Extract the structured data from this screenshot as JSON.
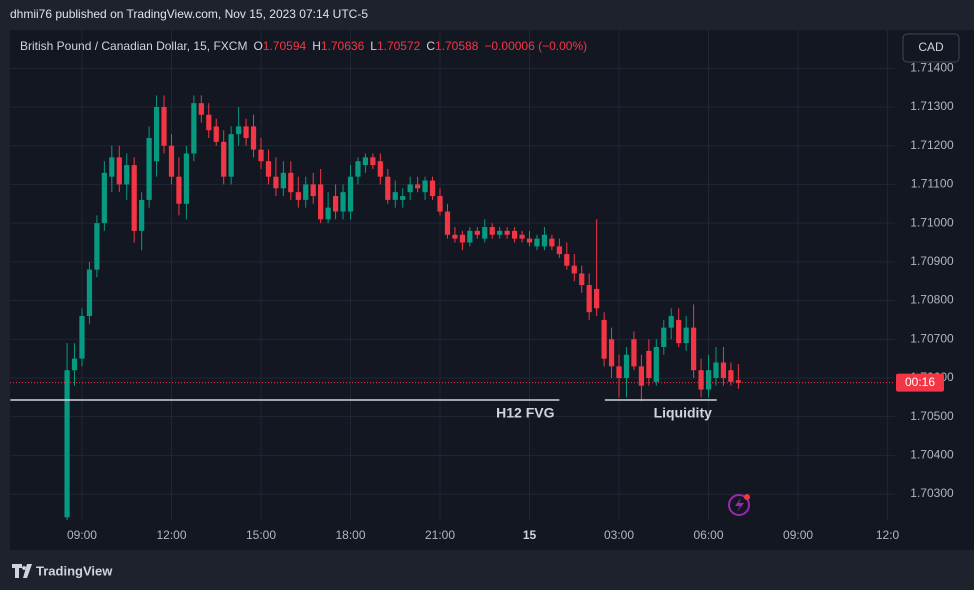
{
  "header": {
    "publisher": "dhmii76 published on TradingView.com, Nov 15, 2023 07:14 UTC-5"
  },
  "footer": {
    "brand": "TradingView"
  },
  "currency_button": "CAD",
  "chart_data": {
    "type": "candlestick",
    "title": "British Pound / Canadian Dollar, 15, FXCM",
    "ohlc_legend": {
      "open_label": "O",
      "open": "1.70594",
      "high_label": "H",
      "high": "1.70636",
      "low_label": "L",
      "low": "1.70572",
      "close_label": "C",
      "close": "1.70588",
      "change": "−0.00006 (−0.00%)"
    },
    "up_color": "#089981",
    "down_color": "#f23645",
    "open": [
      1.7024,
      1.7062,
      1.7065,
      1.7076,
      1.7088,
      1.71,
      1.7112,
      1.7117,
      1.711,
      1.7115,
      1.7098,
      1.7106,
      1.7116,
      1.713,
      1.712,
      1.7112,
      1.7105,
      1.7118,
      1.7131,
      1.7128,
      1.7125,
      1.7121,
      1.7112,
      1.7123,
      1.7125,
      1.7125,
      1.7119,
      1.7116,
      1.7112,
      1.7109,
      1.7113,
      1.7108,
      1.7106,
      1.711,
      1.711,
      1.7101,
      1.7107,
      1.7103,
      1.7103,
      1.7112,
      1.7115,
      1.7117,
      1.7116,
      1.7112,
      1.7106,
      1.7106,
      1.7108,
      1.711,
      1.7108,
      1.7111,
      1.7107,
      1.7103,
      1.7097,
      1.7097,
      1.7095,
      1.7098,
      1.7096,
      1.7099,
      1.7097,
      1.7098,
      1.7098,
      1.7097,
      1.7096,
      1.7094,
      1.7094,
      1.7096,
      1.7094,
      1.7092,
      1.7089,
      1.7087,
      1.7084,
      1.7083,
      1.7075,
      1.707,
      1.7063,
      1.706,
      1.707,
      1.7063,
      1.7067,
      1.7059,
      1.7068,
      1.7073,
      1.7075,
      1.7069,
      1.7073,
      1.7062,
      1.7057,
      1.706,
      1.7064,
      1.7062,
      1.70594
    ],
    "high": [
      1.7069,
      1.7069,
      1.7078,
      1.709,
      1.7102,
      1.7116,
      1.712,
      1.712,
      1.7118,
      1.7117,
      1.7108,
      1.7125,
      1.7133,
      1.7133,
      1.7123,
      1.7117,
      1.712,
      1.7133,
      1.7133,
      1.7131,
      1.7127,
      1.7124,
      1.7125,
      1.713,
      1.7127,
      1.7128,
      1.7122,
      1.7119,
      1.7117,
      1.7116,
      1.7116,
      1.7112,
      1.7112,
      1.7113,
      1.7114,
      1.7108,
      1.711,
      1.711,
      1.7115,
      1.7117,
      1.7118,
      1.7118,
      1.7118,
      1.7114,
      1.7111,
      1.7109,
      1.7112,
      1.7112,
      1.7112,
      1.7112,
      1.7109,
      1.7105,
      1.7099,
      1.7098,
      1.7099,
      1.7099,
      1.7101,
      1.71,
      1.7099,
      1.7099,
      1.7099,
      1.7098,
      1.7098,
      1.7097,
      1.7099,
      1.7097,
      1.7096,
      1.7095,
      1.7092,
      1.7089,
      1.7087,
      1.7101,
      1.7077,
      1.7073,
      1.7066,
      1.7068,
      1.7072,
      1.7066,
      1.707,
      1.707,
      1.7075,
      1.7078,
      1.7078,
      1.7076,
      1.7079,
      1.7065,
      1.7066,
      1.7068,
      1.7068,
      1.7064,
      1.70636
    ],
    "low": [
      1.70233,
      1.7058,
      1.7063,
      1.7074,
      1.7086,
      1.7098,
      1.7108,
      1.7108,
      1.7106,
      1.7095,
      1.7093,
      1.7104,
      1.7112,
      1.7118,
      1.711,
      1.7102,
      1.7101,
      1.7116,
      1.7126,
      1.7122,
      1.712,
      1.711,
      1.711,
      1.712,
      1.712,
      1.7117,
      1.7114,
      1.711,
      1.7107,
      1.7107,
      1.7106,
      1.7104,
      1.7104,
      1.7105,
      1.71,
      1.71,
      1.7101,
      1.7101,
      1.7101,
      1.711,
      1.7113,
      1.7114,
      1.711,
      1.7105,
      1.7104,
      1.7104,
      1.7106,
      1.7108,
      1.7106,
      1.7106,
      1.7102,
      1.7096,
      1.7095,
      1.7093,
      1.7094,
      1.7096,
      1.7095,
      1.7096,
      1.7096,
      1.7096,
      1.7095,
      1.7095,
      1.7094,
      1.7093,
      1.7093,
      1.7093,
      1.7091,
      1.7088,
      1.7085,
      1.7082,
      1.7075,
      1.7076,
      1.7063,
      1.706,
      1.7055,
      1.7055,
      1.7062,
      1.7054,
      1.7058,
      1.7058,
      1.7066,
      1.707,
      1.7068,
      1.7067,
      1.706,
      1.7055,
      1.7055,
      1.7058,
      1.7058,
      1.7058,
      1.70572
    ],
    "close": [
      1.7062,
      1.7065,
      1.7076,
      1.7088,
      1.71,
      1.7113,
      1.7117,
      1.711,
      1.7115,
      1.7098,
      1.7106,
      1.7122,
      1.713,
      1.712,
      1.7112,
      1.7105,
      1.7118,
      1.7131,
      1.7128,
      1.7124,
      1.7121,
      1.7112,
      1.7123,
      1.7125,
      1.7122,
      1.7119,
      1.7116,
      1.7112,
      1.7109,
      1.7113,
      1.7108,
      1.7106,
      1.711,
      1.7107,
      1.7101,
      1.7104,
      1.7103,
      1.7108,
      1.7112,
      1.7116,
      1.7117,
      1.7115,
      1.7112,
      1.7106,
      1.7108,
      1.7107,
      1.711,
      1.7109,
      1.7111,
      1.7107,
      1.7103,
      1.7097,
      1.7096,
      1.7095,
      1.7098,
      1.7097,
      1.7099,
      1.7097,
      1.7098,
      1.7097,
      1.7096,
      1.7096,
      1.7095,
      1.7096,
      1.7097,
      1.7094,
      1.7092,
      1.7089,
      1.7087,
      1.7084,
      1.7077,
      1.7078,
      1.7065,
      1.7063,
      1.706,
      1.7066,
      1.7063,
      1.7058,
      1.706,
      1.7068,
      1.7073,
      1.7076,
      1.7069,
      1.7073,
      1.7062,
      1.7057,
      1.7062,
      1.7064,
      1.706,
      1.7059,
      1.70588
    ],
    "xlim": [
      -7.65,
      111
    ],
    "xticks": [
      {
        "value": 2,
        "label": "09:00"
      },
      {
        "value": 14,
        "label": "12:00"
      },
      {
        "value": 26,
        "label": "15:00"
      },
      {
        "value": 38,
        "label": "18:00"
      },
      {
        "value": 50,
        "label": "21:00"
      },
      {
        "value": 62,
        "label": "15"
      },
      {
        "value": 74,
        "label": "03:00"
      },
      {
        "value": 86,
        "label": "06:00"
      },
      {
        "value": 98,
        "label": "09:00"
      },
      {
        "value": 110,
        "label": "12:0"
      }
    ],
    "ylim": [
      1.70233,
      1.71499
    ],
    "yticks": [
      {
        "value": 1.703,
        "label": "1.70300"
      },
      {
        "value": 1.704,
        "label": "1.70400"
      },
      {
        "value": 1.705,
        "label": "1.70500"
      },
      {
        "value": 1.706,
        "label": "1.70600"
      },
      {
        "value": 1.707,
        "label": "1.70700"
      },
      {
        "value": 1.708,
        "label": "1.70800"
      },
      {
        "value": 1.709,
        "label": "1.70900"
      },
      {
        "value": 1.71,
        "label": "1.71000"
      },
      {
        "value": 1.711,
        "label": "1.71100"
      },
      {
        "value": 1.712,
        "label": "1.71200"
      },
      {
        "value": 1.713,
        "label": "1.71300"
      },
      {
        "value": 1.714,
        "label": "1.71400"
      }
    ],
    "grid": true,
    "last_price": 1.70588,
    "countdown": "00:16",
    "annotations": [
      {
        "text": "H12 FVG",
        "price": 1.70543,
        "x_range": [
          -7.6,
          66
        ]
      },
      {
        "text": "Liquidity",
        "price": 1.70543,
        "x_range": [
          72.1,
          87.1
        ]
      }
    ]
  }
}
